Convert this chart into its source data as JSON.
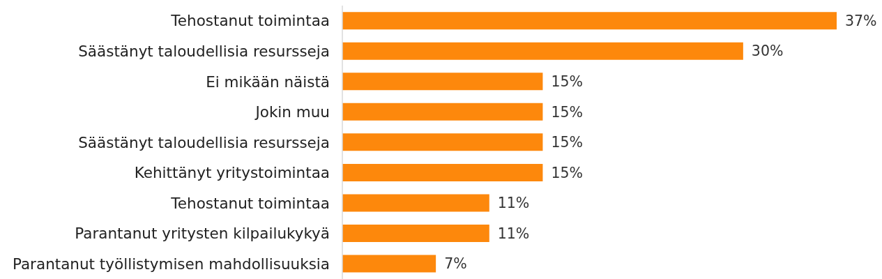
{
  "chart_data": {
    "type": "bar",
    "orientation": "horizontal",
    "categories": [
      "Tehostanut toimintaa",
      "Säästänyt taloudellisia resursseja",
      "Ei mikään näistä",
      "Jokin muu",
      "Säästänyt taloudellisia resursseja",
      "Kehittänyt yritystoimintaa",
      "Tehostanut toimintaa",
      "Parantanut yritysten kilpailukykyä",
      "Parantanut työllistymisen mahdollisuuksia"
    ],
    "values": [
      37,
      30,
      15,
      15,
      15,
      15,
      11,
      11,
      7
    ],
    "value_labels": [
      "37%",
      "30%",
      "15%",
      "15%",
      "15%",
      "15%",
      "11%",
      "11%",
      "7%"
    ],
    "color": "#fd880c"
  }
}
